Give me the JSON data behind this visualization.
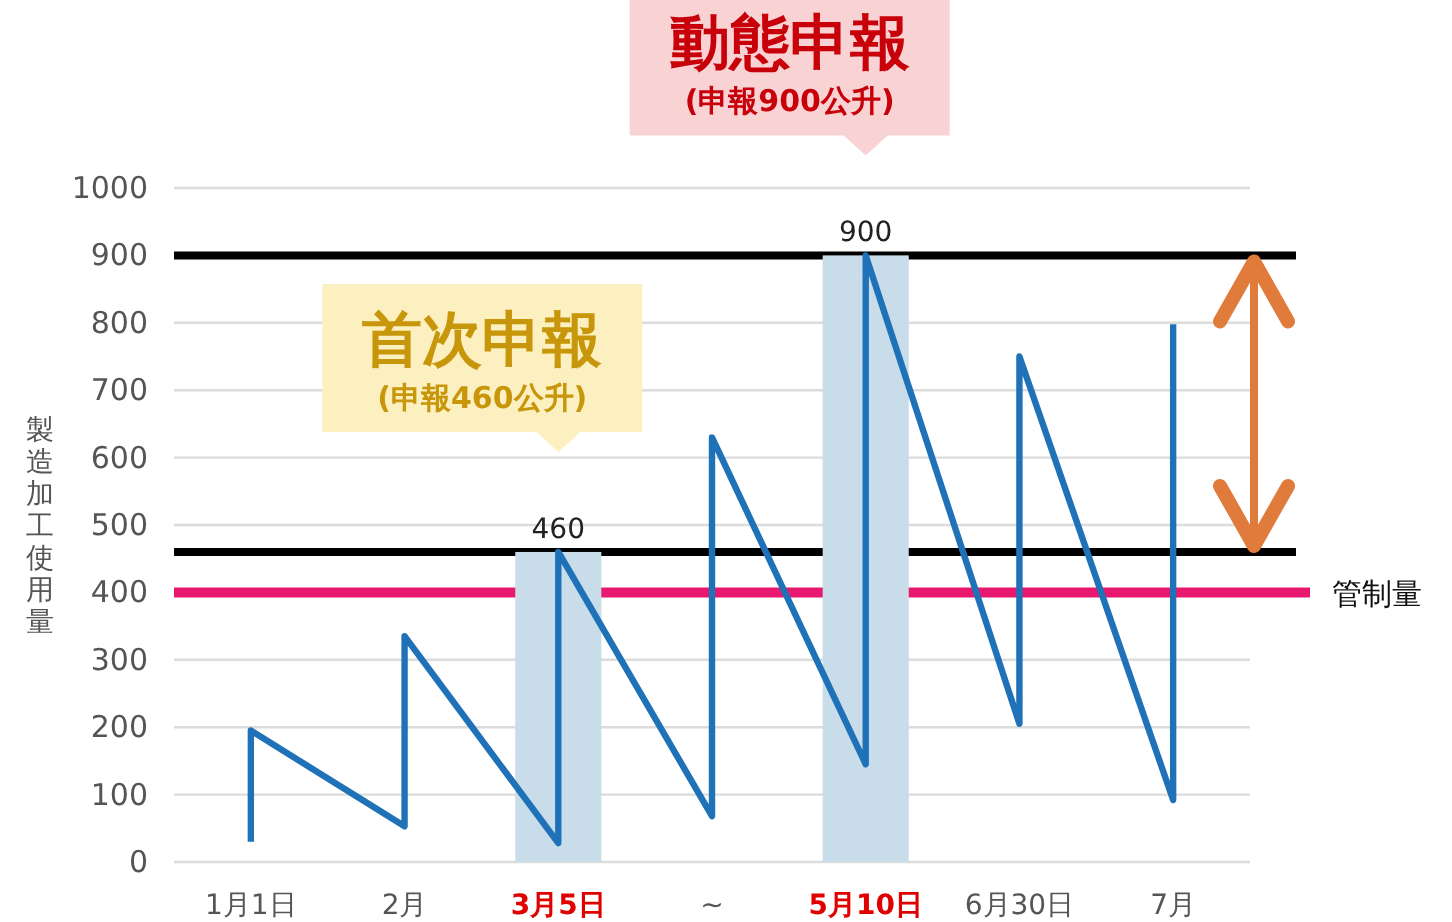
{
  "chart_data": {
    "type": "line",
    "ylabel": "製造加工使用量",
    "categories": [
      "1月1日",
      "2月",
      "3月5日",
      "~",
      "5月10日",
      "6月30日",
      "7月"
    ],
    "ylim": [
      0,
      1000
    ],
    "yticks": [
      0,
      100,
      200,
      300,
      400,
      500,
      600,
      700,
      800,
      900,
      1000
    ],
    "grid": "y",
    "series": [
      {
        "type": "bar",
        "x": [
          "3月5日",
          "5月10日"
        ],
        "values": [
          460,
          900
        ],
        "color": "#c9dcea",
        "value_labels": [
          "460",
          "900"
        ]
      },
      {
        "color": "#1f72b8",
        "x": [
          "1月1日",
          "1月1日",
          "2月",
          "2月",
          "3月5日",
          "3月5日",
          "~",
          "~",
          "5月10日",
          "5月10日",
          "6月30日",
          "6月30日",
          "7月",
          "7月"
        ],
        "values": [
          30,
          195,
          53,
          335,
          28,
          460,
          68,
          630,
          145,
          900,
          205,
          750,
          92,
          798
        ]
      }
    ],
    "ref_lines": [
      {
        "axis": "y",
        "value": 400,
        "label": "管制量",
        "color": "#e8186e"
      },
      {
        "axis": "y",
        "value": 460,
        "color": "#000000"
      },
      {
        "axis": "y",
        "value": 900,
        "color": "#000000"
      }
    ],
    "annotations": [
      {
        "text": "首次申報\n(申報460公升)",
        "x": "3月5日",
        "y": 460
      },
      {
        "text": "動態申報\n(申報900公升)",
        "x": "5月10日",
        "y": 900
      }
    ]
  }
}
